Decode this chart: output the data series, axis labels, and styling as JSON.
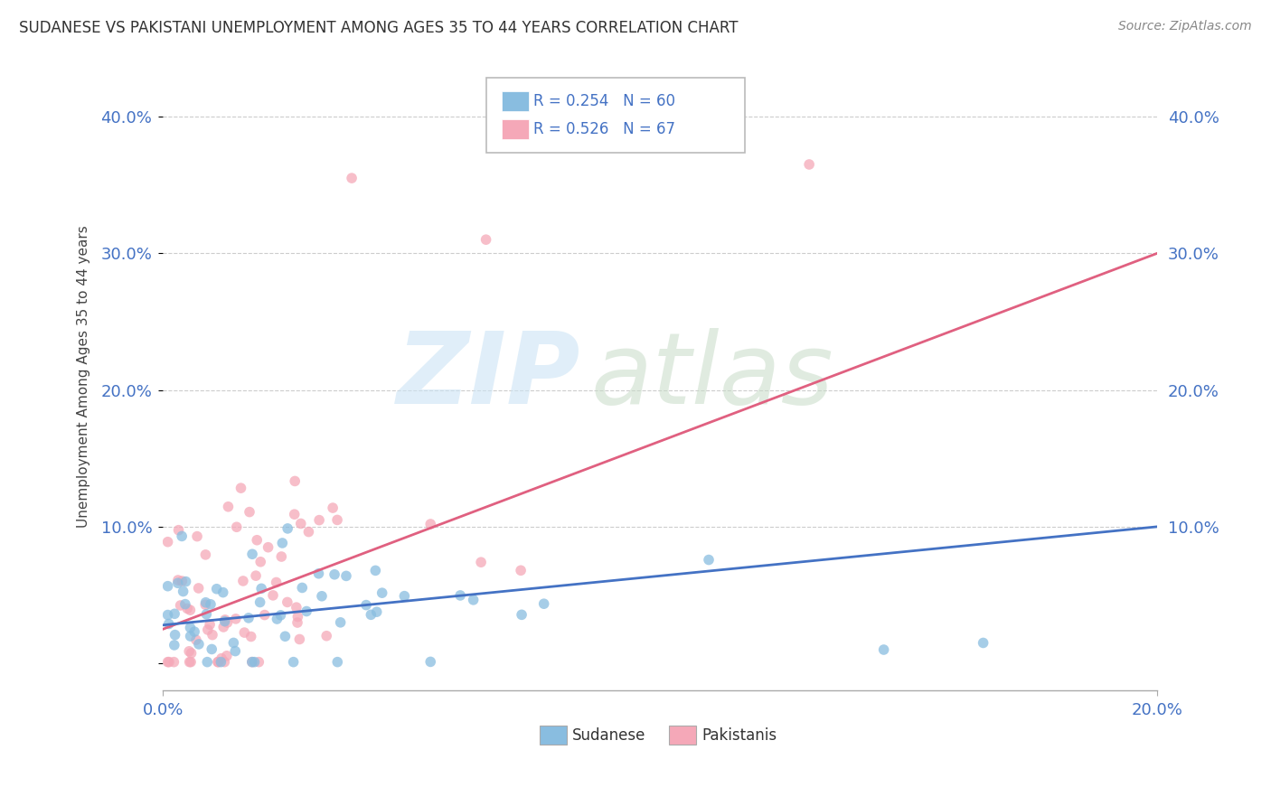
{
  "title": "SUDANESE VS PAKISTANI UNEMPLOYMENT AMONG AGES 35 TO 44 YEARS CORRELATION CHART",
  "source": "Source: ZipAtlas.com",
  "ylabel": "Unemployment Among Ages 35 to 44 years",
  "xmin": 0.0,
  "xmax": 0.2,
  "ymin": -0.02,
  "ymax": 0.44,
  "yticks": [
    0.0,
    0.1,
    0.2,
    0.3,
    0.4
  ],
  "ytick_labels": [
    "",
    "10.0%",
    "20.0%",
    "30.0%",
    "40.0%"
  ],
  "xtick_labels": [
    "0.0%",
    "20.0%"
  ],
  "grid_color": "#cccccc",
  "blue_scatter_color": "#89bde0",
  "pink_scatter_color": "#f5a8b8",
  "blue_line_color": "#4472c4",
  "pink_line_color": "#e06080",
  "legend_R_blue": "R = 0.254",
  "legend_N_blue": "N = 60",
  "legend_R_pink": "R = 0.526",
  "legend_N_pink": "N = 67",
  "N_blue": 60,
  "N_pink": 67,
  "blue_seed": 10,
  "pink_seed": 20
}
